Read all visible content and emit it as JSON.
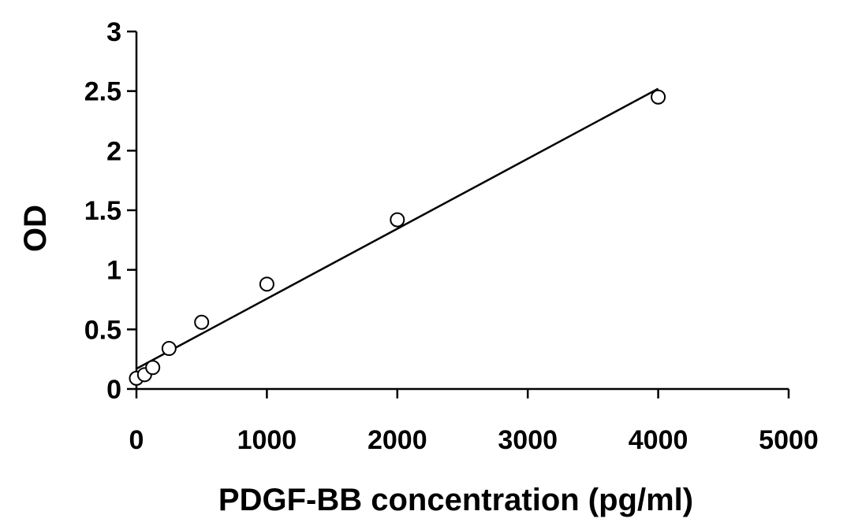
{
  "chart_data": {
    "type": "scatter",
    "xlabel": "PDGF-BB concentration (pg/ml)",
    "ylabel": "OD",
    "xlim": [
      0,
      5000
    ],
    "ylim": [
      0,
      3
    ],
    "x_ticks": [
      0,
      1000,
      2000,
      3000,
      4000,
      5000
    ],
    "y_ticks": [
      0,
      0.5,
      1,
      1.5,
      2,
      2.5,
      3
    ],
    "x_tick_labels": [
      "0",
      "1000",
      "2000",
      "3000",
      "4000",
      "5000"
    ],
    "y_tick_labels": [
      "0",
      "0.5",
      "1",
      "1.5",
      "2",
      "2.5",
      "3"
    ],
    "grid": false,
    "legend": "none",
    "series": [
      {
        "marker": "open-circle",
        "x": [
          0,
          62.5,
          125,
          250,
          500,
          1000,
          2000,
          4000
        ],
        "y": [
          0.09,
          0.12,
          0.18,
          0.34,
          0.56,
          0.88,
          1.42,
          2.45
        ]
      }
    ],
    "trendline": {
      "type": "linear",
      "x": [
        0,
        4000
      ],
      "y": [
        0.17,
        2.52
      ]
    },
    "colors": {
      "axis": "#000000",
      "marker_stroke": "#000000",
      "marker_fill": "#ffffff",
      "trendline": "#000000"
    }
  }
}
